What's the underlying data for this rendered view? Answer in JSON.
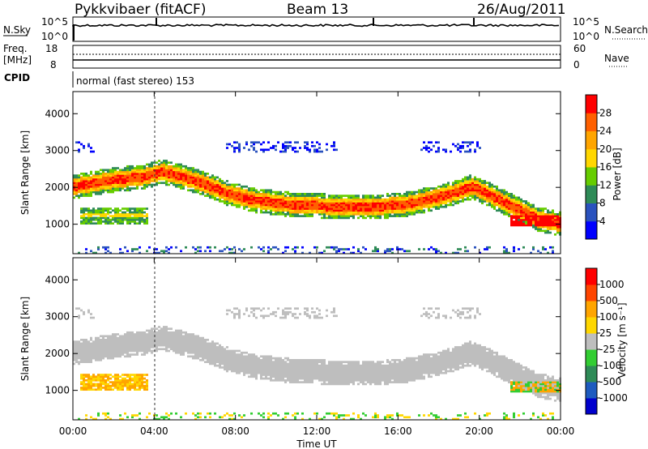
{
  "header": {
    "title": "Pykkvibaer (fitACF)",
    "beam": "Beam 13",
    "date": "26/Aug/2011"
  },
  "panels": {
    "nsky": {
      "label": "N.Sky",
      "left_ticks": [
        "10^5",
        "10^0"
      ],
      "right_ticks": [
        "10^5",
        "10^0"
      ],
      "right_label": "N.Search"
    },
    "freq": {
      "label_line1": "Freq.",
      "label_line2": "[MHz]",
      "left_ticks": [
        "18",
        "8"
      ],
      "right_ticks": [
        "60",
        "0"
      ],
      "right_label": "Nave"
    },
    "cpid": {
      "label": "CPID",
      "text": "normal (fast stereo) 153"
    }
  },
  "colors": {
    "power_scale": [
      "#0000ff",
      "#2a52be",
      "#2e8b57",
      "#66cd00",
      "#ffd700",
      "#ffa500",
      "#ff6000",
      "#ff0000"
    ],
    "velocity_scale": [
      "#0000cd",
      "#1e5bbf",
      "#2e8b57",
      "#32cd32",
      "#bebebe",
      "#ffd700",
      "#ffa500",
      "#ff4500",
      "#ff0000"
    ]
  },
  "chart_data": [
    {
      "type": "heatmap",
      "panel": "power",
      "ylabel": "Slant Range [km]",
      "xlabel": "Time UT",
      "ylim": [
        200,
        4600
      ],
      "yticks": [
        "1000",
        "2000",
        "3000",
        "4000"
      ],
      "xticks": [
        "00:00",
        "04:00",
        "08:00",
        "12:00",
        "16:00",
        "20:00",
        "00:00"
      ],
      "colorbar": {
        "label": "Power [dB]",
        "ticks": [
          "4",
          "8",
          "12",
          "16",
          "20",
          "24",
          "28"
        ],
        "range": [
          0,
          32
        ]
      },
      "bands": [
        {
          "name": "main echo",
          "center_km": [
            2000,
            2100,
            2200,
            2250,
            2400,
            2250,
            2050,
            1800,
            1650,
            1560,
            1500,
            1480,
            1450,
            1450,
            1470,
            1520,
            1650,
            1800,
            2000,
            1700,
            1400,
            1100,
            1000
          ]
        },
        {
          "name": "early near-range",
          "time_h": [
            0.5,
            3.5
          ],
          "range_km": [
            1000,
            1400
          ],
          "power_db": 20
        }
      ]
    },
    {
      "type": "heatmap",
      "panel": "velocity",
      "ylabel": "Slant Range [km]",
      "xlabel": "Time UT",
      "ylim": [
        200,
        4600
      ],
      "yticks": [
        "1000",
        "2000",
        "3000",
        "4000"
      ],
      "xticks": [
        "00:00",
        "04:00",
        "08:00",
        "12:00",
        "16:00",
        "20:00",
        "00:00"
      ],
      "colorbar": {
        "label": "Velocity [m s⁻¹]",
        "ticks": [
          "1000",
          "500",
          "100",
          "25",
          "-25",
          "-100",
          "-500",
          "-1000"
        ]
      }
    }
  ]
}
